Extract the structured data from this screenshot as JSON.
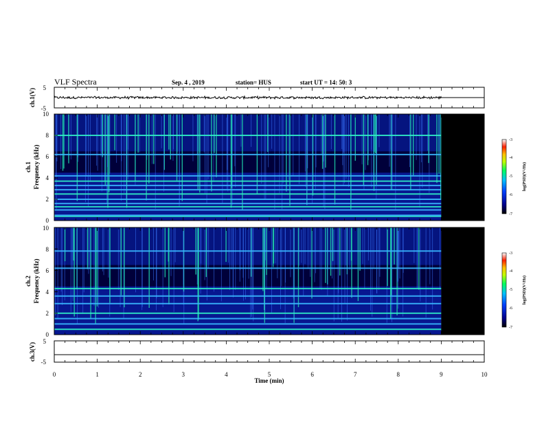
{
  "header": {
    "title": "VLF Spectra",
    "date": "Sep. 4 , 2019",
    "station": "station= HUS",
    "start_ut": "start UT =   14: 50: 3"
  },
  "colors": {
    "spectrogram_low": "#00003a",
    "spectrogram_mid": "#1a3cff",
    "spectrogram_high": "#00e0c0",
    "no_data": "#000000",
    "waveform": "#000000"
  },
  "chart_data": [
    {
      "type": "line",
      "name": "ch1-waveform",
      "ylabel": "ch.1(V)",
      "ylim": [
        -5,
        5
      ],
      "yticks": [
        "5",
        "-5"
      ],
      "xlim": [
        0,
        10
      ],
      "data_end_min": 9.0,
      "mean_value": 0,
      "after_data_value": 0
    },
    {
      "type": "heatmap",
      "name": "ch1-spectrogram",
      "ylabel": "ch.1\nFrequency (kHz)",
      "ylim": [
        0,
        10
      ],
      "yticks": [
        "0",
        "2",
        "4",
        "6",
        "8",
        "10"
      ],
      "xlim": [
        0,
        10
      ],
      "data_end_min": 9.0,
      "horizontal_lines_khz": [
        0.4,
        0.5,
        1.0,
        1.3,
        1.6,
        2.0,
        2.5,
        2.9,
        3.3,
        3.7,
        4.2,
        6.2,
        8.0
      ],
      "colorbar": {
        "label": "log(PSD)(V²/Hz)",
        "range": [
          -7,
          -3
        ],
        "ticks": [
          "-3",
          "-4",
          "-5",
          "-6",
          "-7"
        ]
      }
    },
    {
      "type": "heatmap",
      "name": "ch2-spectrogram",
      "ylabel": "ch.2\nFrequency (kHz)",
      "ylim": [
        0,
        10
      ],
      "yticks": [
        "0",
        "2",
        "4",
        "6",
        "8",
        "10"
      ],
      "xlim": [
        0,
        10
      ],
      "data_end_min": 9.0,
      "horizontal_lines_khz": [
        0.5,
        1.0,
        1.5,
        2.0,
        2.9,
        3.6,
        4.3,
        6.2,
        7.8
      ],
      "colorbar": {
        "label": "log(PSD)(V²/Hz)",
        "range": [
          -7,
          -3
        ],
        "ticks": [
          "-3",
          "-4",
          "-5",
          "-6",
          "-7"
        ]
      }
    },
    {
      "type": "line",
      "name": "ch3-waveform",
      "ylabel": "ch.3(V)",
      "ylim": [
        -5,
        5
      ],
      "yticks": [
        "5",
        "-5"
      ],
      "xlim": [
        0,
        10
      ],
      "value": -1.5
    }
  ],
  "xaxis": {
    "label": "Time  (min)",
    "ticks": [
      "0",
      "1",
      "2",
      "3",
      "4",
      "5",
      "6",
      "7",
      "8",
      "9",
      "10"
    ]
  }
}
